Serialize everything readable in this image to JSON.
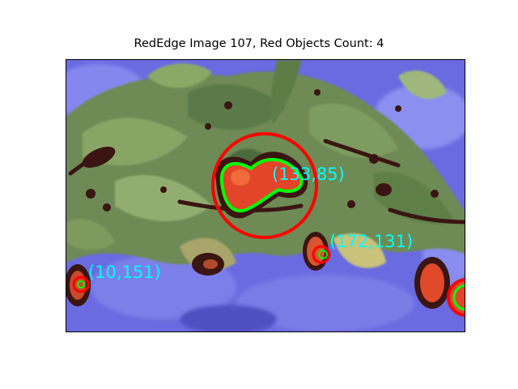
{
  "figure": {
    "title": "RedEdge Image 107, Red Objects Count: 4"
  },
  "detections": [
    {
      "label": "(133,85)"
    },
    {
      "label": "(172,131)"
    },
    {
      "label": "(10,151)"
    },
    {
      "label": ""
    }
  ],
  "colors": {
    "detection_circle": "#ff0000",
    "contour": "#00ff00",
    "label_text": "#00ffff",
    "background_blue": "#6a6be0",
    "foliage_green": "#6e8a55",
    "fruit_red": "#e2452a",
    "frame_border": "#0000cc"
  }
}
